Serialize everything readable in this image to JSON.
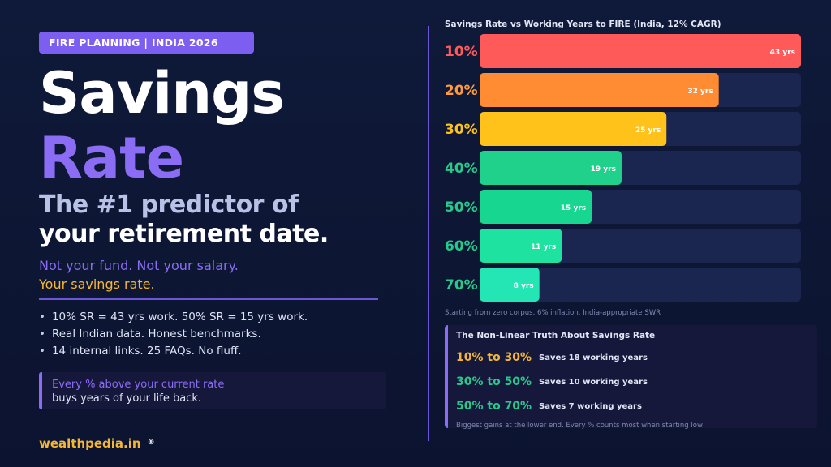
{
  "left": {
    "tag": "FIRE PLANNING | INDIA 2026",
    "headline_1": "Savings",
    "headline_2": "Rate",
    "subhead_1": "The #1 predictor of",
    "subhead_2": "your retirement date.",
    "note_1": "Not your fund. Not your salary.",
    "note_2": "Your savings rate.",
    "bullets": [
      "10% SR = 43 yrs work. 50% SR = 15 yrs work.",
      "Real Indian data. Honest benchmarks.",
      "14 internal links. 25 FAQs. No fluff."
    ],
    "callout_line_1": "Every % above your current rate",
    "callout_line_2": "buys years of your life back.",
    "brand": "wealthpedia.in",
    "brand_mark": "®"
  },
  "colors": {
    "accent_purple": "#8b6cf5",
    "accent_gold": "#f5b733",
    "track": "#1a2550"
  },
  "chart_data": {
    "type": "bar",
    "orientation": "horizontal",
    "title": "Savings Rate vs Working Years to FIRE (India, 12% CAGR)",
    "categories": [
      "10%",
      "20%",
      "30%",
      "40%",
      "50%",
      "60%",
      "70%"
    ],
    "values": [
      43,
      32,
      25,
      19,
      15,
      11,
      8
    ],
    "value_labels": [
      "43 yrs",
      "32 yrs",
      "25 yrs",
      "19 yrs",
      "15 yrs",
      "11 yrs",
      "8 yrs"
    ],
    "bar_colors": [
      "#ff5a5a",
      "#ff8c33",
      "#ffc21a",
      "#1fd18b",
      "#17d68f",
      "#1ee2a0",
      "#23e6b4"
    ],
    "label_colors": [
      "#ff5a5a",
      "#ff9a40",
      "#ffc21a",
      "#27c98d",
      "#27c98d",
      "#27c98d",
      "#27c98d"
    ],
    "xlim": [
      0,
      43
    ],
    "footnote": "Starting from zero corpus. 6% inflation. India-appropriate SWR"
  },
  "truth": {
    "title": "The Non-Linear Truth About Savings Rate",
    "rows": [
      {
        "range": "10% to 30%",
        "text": "Saves 18 working years",
        "color": "#f5b733"
      },
      {
        "range": "30% to 50%",
        "text": "Saves 10 working years",
        "color": "#27c98d"
      },
      {
        "range": "50% to 70%",
        "text": "Saves 7 working years",
        "color": "#27c98d"
      }
    ],
    "footnote": "Biggest gains at the lower end. Every % counts most when starting low"
  }
}
